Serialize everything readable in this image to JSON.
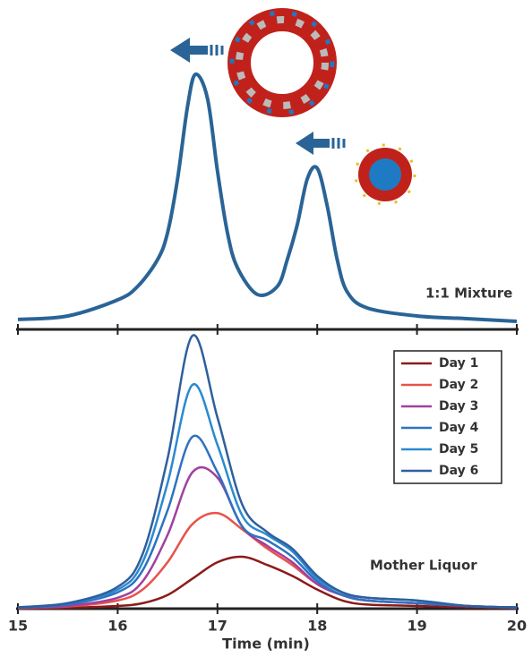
{
  "chart_data": [
    {
      "type": "line",
      "annotation": "1:1 Mixture",
      "x": [
        15,
        15.5,
        16,
        16.2,
        16.4,
        16.5,
        16.6,
        16.7,
        16.78,
        16.9,
        17.0,
        17.1,
        17.2,
        17.4,
        17.6,
        17.7,
        17.8,
        17.9,
        18.0,
        18.1,
        18.2,
        18.3,
        18.5,
        19,
        19.5,
        20
      ],
      "values": [
        1.7,
        3,
        9,
        14,
        24,
        34,
        54,
        81,
        93,
        84,
        57,
        34,
        21,
        11,
        14,
        24,
        37,
        54,
        58,
        44,
        24,
        12,
        6,
        3,
        2,
        1
      ],
      "color": "#2a6496",
      "xlim": [
        15,
        20
      ],
      "ylim": [
        0,
        100
      ]
    },
    {
      "type": "line",
      "annotation": "Mother Liquor",
      "x_label": "Time (min)",
      "x": [
        15,
        15.5,
        16,
        16.25,
        16.5,
        16.75,
        17,
        17.25,
        17.5,
        17.75,
        18,
        18.25,
        18.5,
        19,
        19.5,
        20
      ],
      "xlim": [
        15,
        20
      ],
      "xticks": [
        15,
        16,
        17,
        18,
        19,
        20
      ],
      "ylim": [
        0,
        100
      ],
      "legend": "top-right",
      "series": [
        {
          "name": "Day 1",
          "color": "#8b1a1a",
          "values": [
            0.1,
            0.3,
            1,
            2,
            5,
            11,
            17,
            19,
            16,
            12,
            7,
            3,
            1.5,
            1,
            0.5,
            0.2
          ]
        },
        {
          "name": "Day 2",
          "color": "#e8524a",
          "values": [
            0.2,
            0.8,
            3,
            7,
            17,
            31,
            35,
            29,
            22,
            16,
            9,
            5,
            3,
            2,
            1,
            0.3
          ]
        },
        {
          "name": "Day 3",
          "color": "#a040a0",
          "values": [
            0.3,
            1,
            4,
            10,
            27,
            50,
            48,
            30,
            23,
            17,
            9,
            5,
            3,
            2,
            1,
            0.3
          ]
        },
        {
          "name": "Day 4",
          "color": "#2e72c0",
          "values": [
            0.4,
            1.5,
            6,
            14,
            36,
            63,
            50,
            30,
            25,
            19,
            10,
            5,
            3,
            2,
            1,
            0.4
          ]
        },
        {
          "name": "Day 5",
          "color": "#2a8ad0",
          "values": [
            0.5,
            2,
            7,
            17,
            46,
            82,
            60,
            34,
            27,
            21,
            11,
            6,
            4,
            3,
            1,
            0.5
          ]
        },
        {
          "name": "Day 6",
          "color": "#2f5f9e",
          "values": [
            0.5,
            2,
            8,
            20,
            55,
            100,
            70,
            38,
            28,
            22,
            12,
            6,
            4,
            3,
            1,
            0.5
          ]
        }
      ]
    }
  ]
}
